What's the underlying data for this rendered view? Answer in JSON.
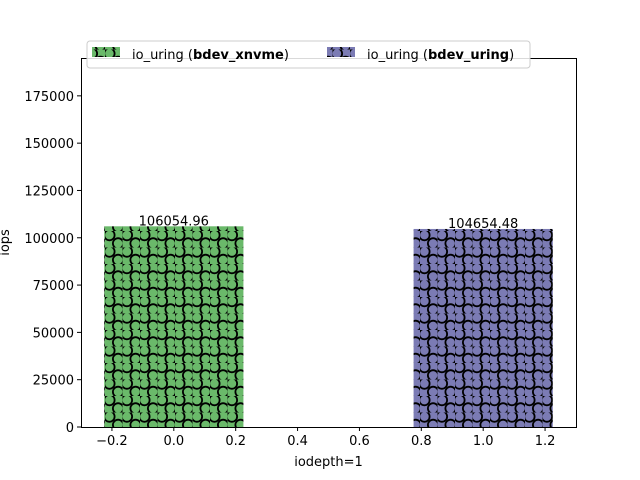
{
  "chart_data": {
    "type": "bar",
    "xlabel": "iodepth=1",
    "ylabel": "iops",
    "xlim": [
      -0.3,
      1.3
    ],
    "ylim": [
      0,
      195000
    ],
    "xticks": [
      -0.2,
      0.0,
      0.2,
      0.4,
      0.6,
      0.8,
      1.0,
      1.2
    ],
    "xtick_labels": [
      "−0.2",
      "0.0",
      "0.2",
      "0.4",
      "0.6",
      "0.8",
      "1.0",
      "1.2"
    ],
    "yticks": [
      0,
      25000,
      50000,
      75000,
      100000,
      125000,
      150000,
      175000
    ],
    "ytick_labels": [
      "0",
      "25000",
      "50000",
      "75000",
      "100000",
      "125000",
      "150000",
      "175000"
    ],
    "bar_width": 0.45,
    "hatch": "circles",
    "legend_position": "top",
    "series": [
      {
        "name_prefix": "io_uring (",
        "name_bold": "bdev_xnvme",
        "name_suffix": ")",
        "x": 0.0,
        "value": 106054.96,
        "value_label": "106054.96",
        "color": "#6ab96a"
      },
      {
        "name_prefix": "io_uring (",
        "name_bold": "bdev_uring",
        "name_suffix": ")",
        "x": 1.0,
        "value": 104654.48,
        "value_label": "104654.48",
        "color": "#7b7bb4"
      }
    ]
  }
}
